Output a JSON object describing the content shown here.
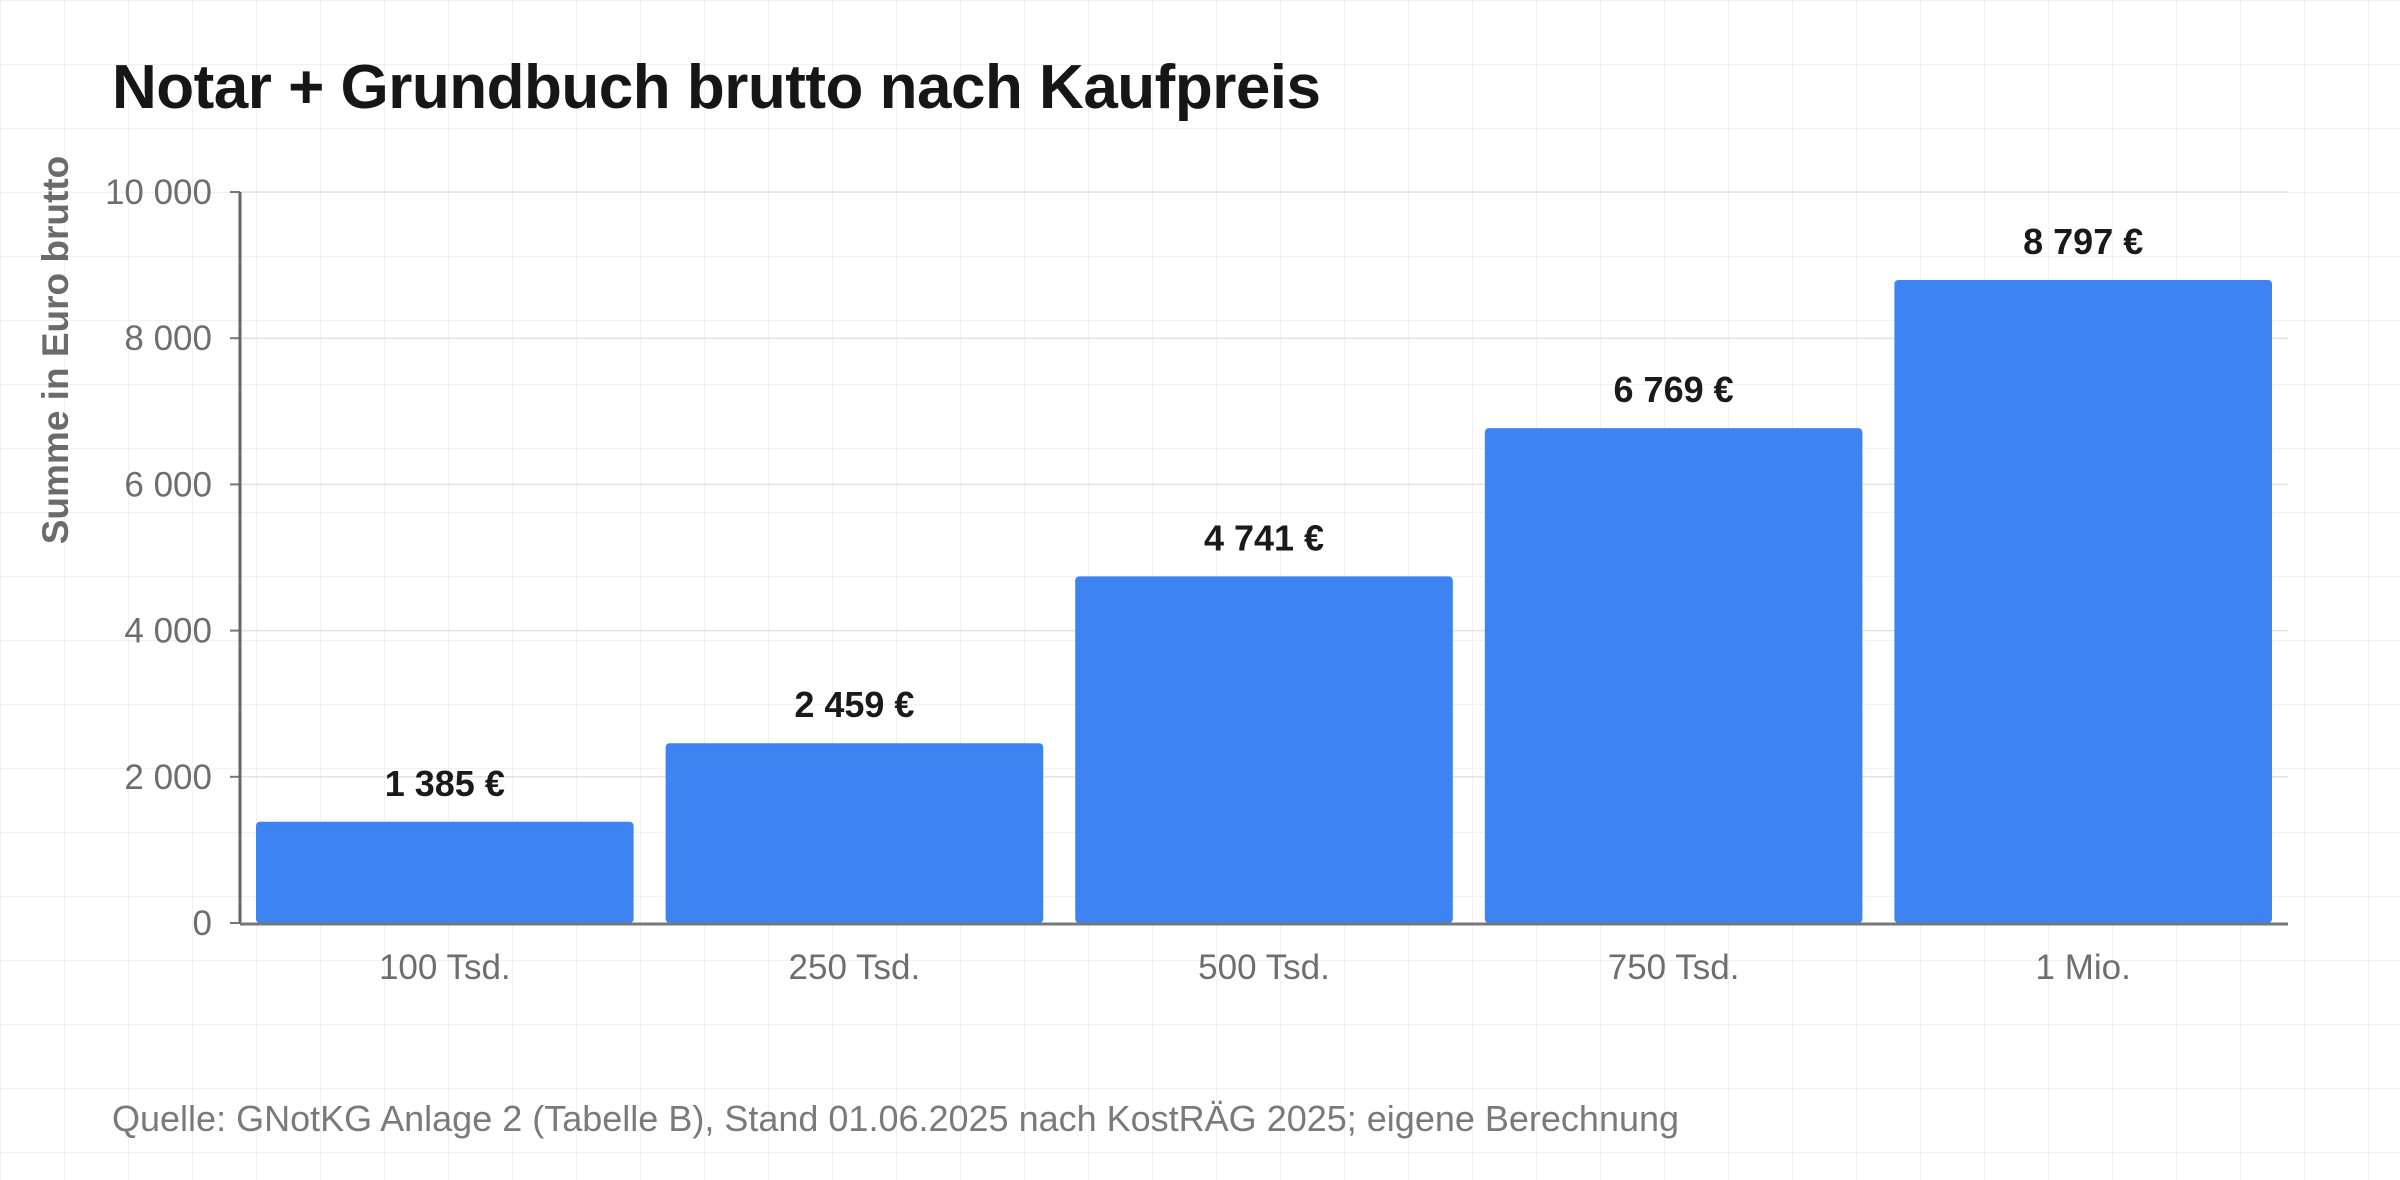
{
  "chart_data": {
    "type": "bar",
    "title": "Notar + Grundbuch brutto nach Kaufpreis",
    "xlabel": "",
    "ylabel": "Summe in Euro brutto",
    "categories": [
      "100 Tsd.",
      "250 Tsd.",
      "500 Tsd.",
      "750 Tsd.",
      "1 Mio."
    ],
    "values": [
      1385,
      2459,
      4741,
      6769,
      8797
    ],
    "value_labels": [
      "1 385 €",
      "2 459 €",
      "4 741 €",
      "6 769 €",
      "8 797 €"
    ],
    "ylim": [
      0,
      10000
    ],
    "yticks": [
      0,
      2000,
      4000,
      6000,
      8000,
      10000
    ],
    "ytick_labels": [
      "0",
      "2 000",
      "4 000",
      "6 000",
      "8 000",
      "10 000"
    ],
    "grid": true,
    "legend": "none",
    "bar_color": "#3d84f2"
  },
  "source": "Quelle: GNotKG Anlage 2 (Tabelle B), Stand 01.06.2025 nach KostRÄG 2025; eigene Berechnung"
}
